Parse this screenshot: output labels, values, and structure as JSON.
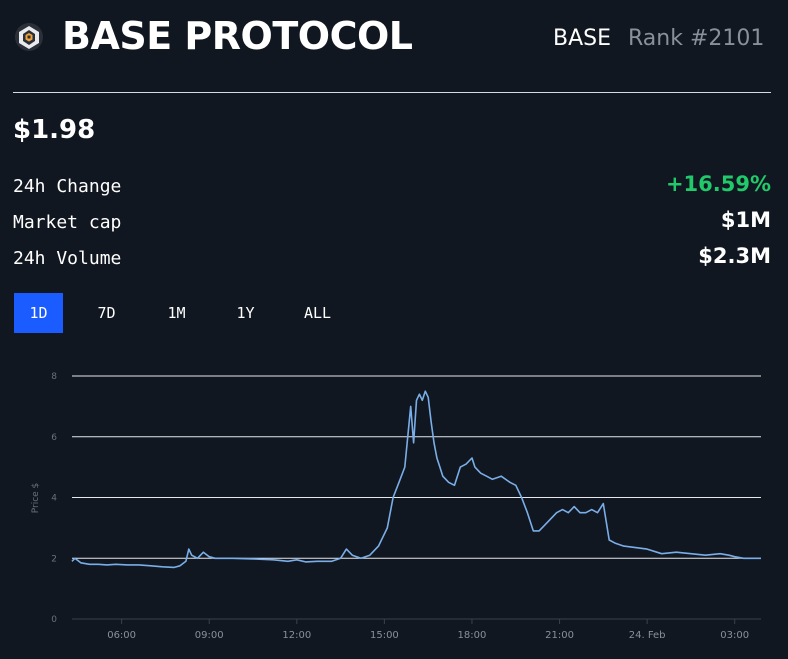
{
  "header": {
    "title": "BASE PROTOCOL",
    "symbol": "BASE",
    "rank": "Rank #2101",
    "logo_icon": "base-protocol-logo-icon"
  },
  "price": "$1.98",
  "stats": [
    {
      "label": "24h Change",
      "value": "+16.59%",
      "color": "#21c96a"
    },
    {
      "label": "Market cap",
      "value": "$1M",
      "color": "#ffffff"
    },
    {
      "label": "24h Volume",
      "value": "$2.3M",
      "color": "#ffffff"
    }
  ],
  "tabs": [
    {
      "label": "1D",
      "active": true
    },
    {
      "label": "7D",
      "active": false
    },
    {
      "label": "1M",
      "active": false
    },
    {
      "label": "1Y",
      "active": false
    },
    {
      "label": "ALL",
      "active": false
    }
  ],
  "colors": {
    "accent": "#1a5cff",
    "line": "#7aaee8",
    "background": "#111720",
    "positive": "#21c96a"
  },
  "chart_data": {
    "type": "line",
    "title": "",
    "xlabel": "",
    "ylabel": "Price $",
    "ylim": [
      0,
      8
    ],
    "yticks": [
      0,
      2,
      4,
      6,
      8
    ],
    "xlim": [
      4.3,
      27.9
    ],
    "xtick_values": [
      6,
      9,
      12,
      15,
      18,
      21,
      24,
      27
    ],
    "xtick_labels": [
      "06:00",
      "09:00",
      "12:00",
      "15:00",
      "18:00",
      "21:00",
      "24. Feb",
      "03:00"
    ],
    "grid": true,
    "series": [
      {
        "name": "Price",
        "x": [
          4.3,
          4.4,
          4.6,
          4.9,
          5.2,
          5.5,
          5.8,
          6.2,
          6.6,
          7.0,
          7.4,
          7.8,
          8.0,
          8.2,
          8.3,
          8.4,
          8.6,
          8.8,
          9.0,
          9.2,
          9.4,
          9.8,
          10.5,
          11.2,
          11.7,
          12.0,
          12.3,
          12.7,
          13.2,
          13.5,
          13.7,
          13.9,
          14.2,
          14.5,
          14.8,
          15.1,
          15.3,
          15.5,
          15.7,
          15.9,
          16.0,
          16.1,
          16.2,
          16.3,
          16.4,
          16.5,
          16.6,
          16.7,
          16.8,
          16.9,
          17.0,
          17.2,
          17.4,
          17.6,
          17.8,
          18.0,
          18.1,
          18.3,
          18.5,
          18.7,
          19.0,
          19.3,
          19.5,
          19.7,
          19.9,
          20.1,
          20.3,
          20.6,
          20.9,
          21.1,
          21.3,
          21.5,
          21.7,
          21.9,
          22.1,
          22.3,
          22.5,
          22.7,
          22.9,
          23.2,
          23.6,
          24.0,
          24.5,
          25.0,
          25.5,
          26.0,
          26.5,
          26.8,
          27.0,
          27.3,
          27.6,
          27.9
        ],
        "values": [
          1.9,
          2.0,
          1.85,
          1.8,
          1.8,
          1.78,
          1.8,
          1.78,
          1.78,
          1.75,
          1.72,
          1.7,
          1.75,
          1.9,
          2.3,
          2.1,
          2.0,
          2.2,
          2.05,
          2.0,
          2.0,
          2.0,
          1.98,
          1.95,
          1.9,
          1.95,
          1.88,
          1.9,
          1.9,
          2.0,
          2.3,
          2.1,
          2.0,
          2.1,
          2.4,
          3.0,
          4.0,
          4.5,
          5.0,
          7.0,
          5.8,
          7.2,
          7.4,
          7.2,
          7.5,
          7.3,
          6.5,
          5.8,
          5.3,
          5.0,
          4.7,
          4.5,
          4.4,
          5.0,
          5.1,
          5.3,
          5.0,
          4.8,
          4.7,
          4.6,
          4.7,
          4.5,
          4.4,
          4.0,
          3.5,
          2.9,
          2.9,
          3.2,
          3.5,
          3.6,
          3.5,
          3.7,
          3.5,
          3.5,
          3.6,
          3.5,
          3.8,
          2.6,
          2.5,
          2.4,
          2.35,
          2.3,
          2.15,
          2.2,
          2.15,
          2.1,
          2.15,
          2.1,
          2.05,
          2.0,
          2.0,
          2.0
        ]
      }
    ]
  }
}
